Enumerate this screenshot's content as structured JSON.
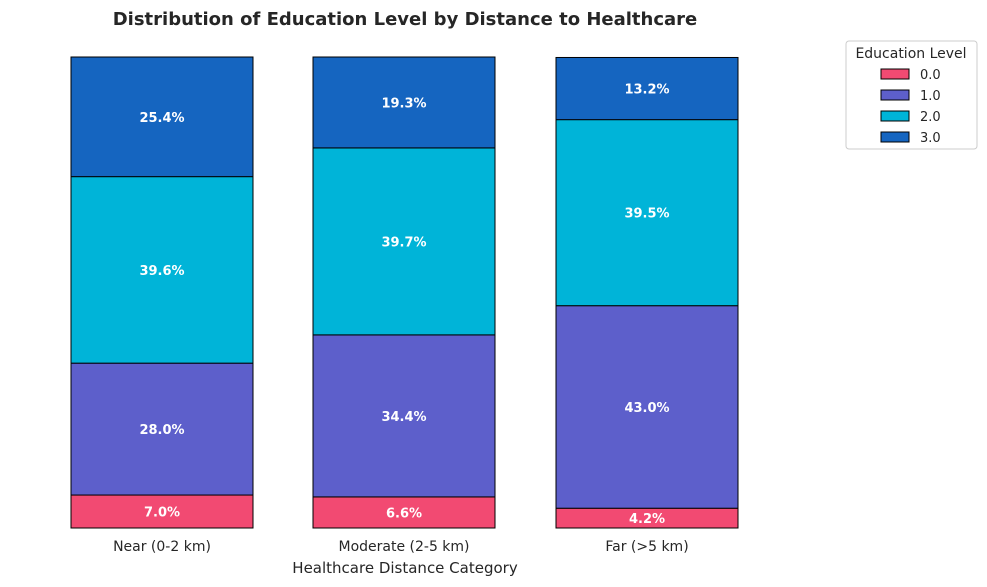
{
  "chart_data": {
    "type": "bar",
    "stacked": true,
    "normalized_percent": true,
    "title": "Distribution of Education Level by Distance to Healthcare",
    "xlabel": "Healthcare Distance Category",
    "ylabel": "",
    "ylim": [
      0,
      100
    ],
    "grid": false,
    "categories": [
      "Near (0-2 km)",
      "Moderate (2-5 km)",
      "Far (>5 km)"
    ],
    "series": [
      {
        "name": "0.0",
        "color": "#F24A72",
        "values": [
          7.0,
          6.6,
          4.2
        ],
        "labels": [
          "7.0%",
          "6.6%",
          "4.2%"
        ]
      },
      {
        "name": "1.0",
        "color": "#5D5FCB",
        "values": [
          28.0,
          34.4,
          43.0
        ],
        "labels": [
          "28.0%",
          "34.4%",
          "43.0%"
        ]
      },
      {
        "name": "2.0",
        "color": "#00B4D8",
        "values": [
          39.6,
          39.7,
          39.5
        ],
        "labels": [
          "39.6%",
          "39.7%",
          "39.5%"
        ]
      },
      {
        "name": "3.0",
        "color": "#1565C0",
        "values": [
          25.4,
          19.3,
          13.2
        ],
        "labels": [
          "25.4%",
          "19.3%",
          "13.2%"
        ]
      }
    ],
    "legend": {
      "title": "Education Level",
      "placement": "top-right-outside"
    }
  }
}
